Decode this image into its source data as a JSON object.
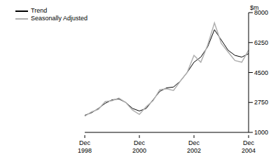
{
  "chart_data": {
    "type": "line",
    "y_label": "$m",
    "categories": [
      "Dec 1998",
      null,
      null,
      null,
      null,
      null,
      null,
      null,
      "Dec 2000",
      null,
      null,
      null,
      null,
      null,
      null,
      null,
      "Dec 2002",
      null,
      null,
      null,
      null,
      null,
      null,
      null,
      "Dec 2004"
    ],
    "series": [
      {
        "name": "Trend",
        "color": "#000000",
        "values": [
          2000,
          2150,
          2400,
          2700,
          2900,
          2950,
          2750,
          2400,
          2250,
          2400,
          2900,
          3400,
          3600,
          3650,
          4000,
          4500,
          5100,
          5400,
          6000,
          7000,
          6400,
          5800,
          5500,
          5400,
          5600
        ]
      },
      {
        "name": "Seasonally Adjusted",
        "color": "#b0b0b0",
        "values": [
          1950,
          2200,
          2350,
          2800,
          2850,
          3000,
          2750,
          2300,
          2050,
          2500,
          2850,
          3500,
          3550,
          3450,
          4000,
          4500,
          5500,
          5100,
          6100,
          7400,
          6200,
          5700,
          5200,
          5100,
          5800
        ]
      }
    ],
    "ylim": [
      1000,
      8000
    ],
    "yticks": [
      1000,
      2750,
      4500,
      6250,
      8000
    ],
    "grid": false,
    "legend": "top-left"
  }
}
